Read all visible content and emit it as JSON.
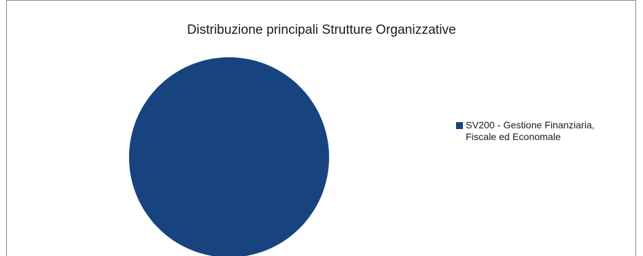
{
  "chart_data": {
    "type": "pie",
    "title": "Distribuzione principali Strutture Organizzative",
    "categories": [
      "SV200 - Gestione Finanziaria,\nFiscale ed Economale"
    ],
    "values": [
      100
    ],
    "colors": [
      "#17447f"
    ],
    "legend": "right"
  }
}
